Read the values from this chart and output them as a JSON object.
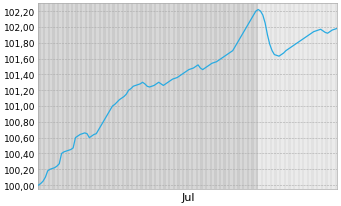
{
  "title": "",
  "xlabel": "Jul",
  "ylabel": "",
  "xlim": [
    0,
    129
  ],
  "ylim": [
    99.95,
    102.3
  ],
  "yticks": [
    100.0,
    100.2,
    100.4,
    100.6,
    100.8,
    101.0,
    101.2,
    101.4,
    101.6,
    101.8,
    102.0,
    102.2
  ],
  "ytick_labels": [
    "100,00",
    "100,20",
    "100,40",
    "100,60",
    "100,80",
    "101,00",
    "101,20",
    "101,40",
    "101,60",
    "101,80",
    "102,00",
    "102,20"
  ],
  "line_color": "#29ABE2",
  "bg_color_left": "#D4D4D4",
  "bg_color_right": "#E8E8E8",
  "stripe_color_dark": "#CCCCCC",
  "stripe_color_light": "#DDDDDD",
  "split_x": 95,
  "y_values": [
    100.0,
    100.02,
    100.05,
    100.1,
    100.18,
    100.2,
    100.21,
    100.22,
    100.24,
    100.27,
    100.4,
    100.42,
    100.43,
    100.44,
    100.45,
    100.47,
    100.6,
    100.62,
    100.64,
    100.65,
    100.66,
    100.65,
    100.6,
    100.62,
    100.64,
    100.65,
    100.7,
    100.75,
    100.8,
    100.85,
    100.9,
    100.95,
    101.0,
    101.02,
    101.05,
    101.08,
    101.1,
    101.12,
    101.15,
    101.2,
    101.22,
    101.25,
    101.26,
    101.27,
    101.28,
    101.3,
    101.28,
    101.25,
    101.24,
    101.25,
    101.26,
    101.28,
    101.3,
    101.28,
    101.26,
    101.28,
    101.3,
    101.32,
    101.34,
    101.35,
    101.36,
    101.38,
    101.4,
    101.42,
    101.44,
    101.46,
    101.47,
    101.48,
    101.5,
    101.52,
    101.48,
    101.46,
    101.48,
    101.5,
    101.52,
    101.54,
    101.55,
    101.56,
    101.58,
    101.6,
    101.62,
    101.64,
    101.66,
    101.68,
    101.7,
    101.75,
    101.8,
    101.85,
    101.9,
    101.95,
    102.0,
    102.05,
    102.1,
    102.15,
    102.2,
    102.22,
    102.2,
    102.15,
    102.05,
    101.9,
    101.78,
    101.7,
    101.65,
    101.64,
    101.63,
    101.65,
    101.67,
    101.7,
    101.72,
    101.74,
    101.76,
    101.78,
    101.8,
    101.82,
    101.84,
    101.86,
    101.88,
    101.9,
    101.92,
    101.94,
    101.95,
    101.96,
    101.97,
    101.95,
    101.93,
    101.92,
    101.94,
    101.96,
    101.97,
    101.98
  ]
}
